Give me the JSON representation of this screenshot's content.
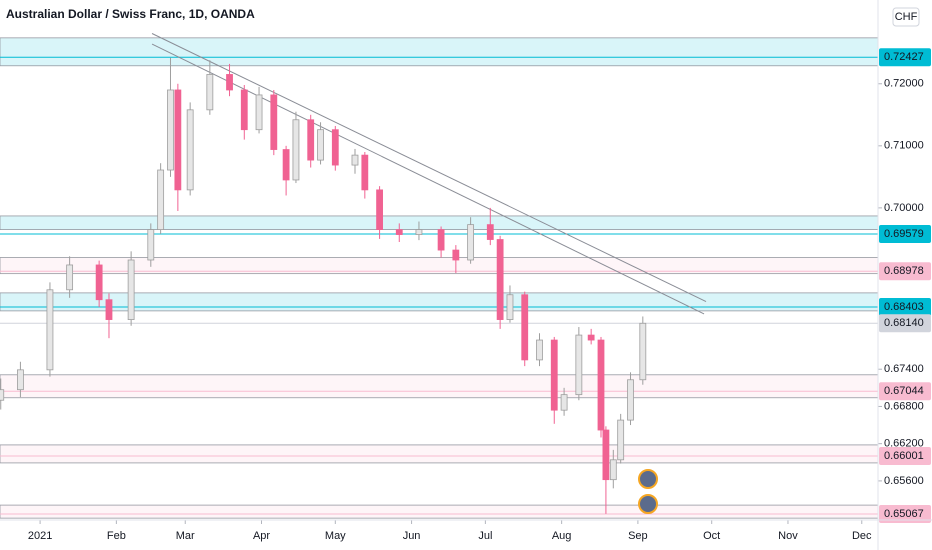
{
  "chart_data": {
    "type": "candlestick",
    "title": "Australian Dollar / Swiss Franc, 1D, OANDA",
    "currency": "CHF",
    "up_color": "#e6e6e6",
    "down_color": "#f06292",
    "xlim": [
      -16.3,
      340.6
    ],
    "ylim": [
      0.6497,
      0.7335
    ],
    "xticks": [
      {
        "value": 0,
        "label": "2021"
      },
      {
        "value": 31,
        "label": "Feb"
      },
      {
        "value": 59,
        "label": "Mar"
      },
      {
        "value": 90,
        "label": "Apr"
      },
      {
        "value": 120,
        "label": "May"
      },
      {
        "value": 151,
        "label": "Jun"
      },
      {
        "value": 181,
        "label": "Jul"
      },
      {
        "value": 212,
        "label": "Aug"
      },
      {
        "value": 243,
        "label": "Sep"
      },
      {
        "value": 273,
        "label": "Oct"
      },
      {
        "value": 304,
        "label": "Nov"
      },
      {
        "value": 334,
        "label": "Dec"
      }
    ],
    "yticks": [
      {
        "value": 0.72,
        "label": "0.72000"
      },
      {
        "value": 0.71,
        "label": "0.71000"
      },
      {
        "value": 0.7,
        "label": "0.70000"
      },
      {
        "value": 0.674,
        "label": "0.67400"
      },
      {
        "value": 0.668,
        "label": "0.66800"
      },
      {
        "value": 0.662,
        "label": "0.66200"
      },
      {
        "value": 0.656,
        "label": "0.65600"
      }
    ],
    "x": [
      -16,
      -8,
      4,
      12,
      24,
      28,
      37,
      45,
      49,
      53,
      56,
      61,
      69,
      77,
      83,
      89,
      95,
      100,
      104,
      110,
      114,
      120,
      128,
      132,
      138,
      146,
      154,
      163,
      169,
      175,
      183,
      187,
      191,
      197,
      203,
      209,
      213,
      219,
      224,
      228,
      230,
      233,
      236,
      240,
      245
    ],
    "open": [
      0.669,
      0.6707,
      0.6739,
      0.6868,
      0.6908,
      0.6852,
      0.682,
      0.6916,
      0.6965,
      0.7061,
      0.719,
      0.7029,
      0.7158,
      0.7215,
      0.719,
      0.7126,
      0.7182,
      0.7094,
      0.7045,
      0.7142,
      0.7077,
      0.7126,
      0.7069,
      0.7085,
      0.7029,
      0.6965,
      0.6957,
      0.6965,
      0.6932,
      0.6916,
      0.6973,
      0.6949,
      0.682,
      0.686,
      0.6755,
      0.6787,
      0.6674,
      0.6699,
      0.6795,
      0.6787,
      0.6642,
      0.6562,
      0.6594,
      0.6658,
      0.6723
    ],
    "high": [
      0.6725,
      0.6752,
      0.688,
      0.6922,
      0.6915,
      0.6862,
      0.693,
      0.6975,
      0.7072,
      0.7242,
      0.72,
      0.717,
      0.7238,
      0.7232,
      0.7198,
      0.7195,
      0.719,
      0.71,
      0.7155,
      0.715,
      0.7138,
      0.7132,
      0.7095,
      0.709,
      0.7035,
      0.6975,
      0.6978,
      0.697,
      0.694,
      0.6985,
      0.7,
      0.6955,
      0.6875,
      0.6865,
      0.6798,
      0.6792,
      0.671,
      0.6808,
      0.6805,
      0.6792,
      0.6648,
      0.661,
      0.6668,
      0.6735,
      0.6825
    ],
    "low": [
      0.6675,
      0.6695,
      0.6728,
      0.6855,
      0.684,
      0.679,
      0.681,
      0.6905,
      0.6958,
      0.705,
      0.6995,
      0.702,
      0.715,
      0.718,
      0.711,
      0.712,
      0.7085,
      0.702,
      0.704,
      0.7065,
      0.707,
      0.706,
      0.7055,
      0.7015,
      0.695,
      0.6945,
      0.6948,
      0.692,
      0.6895,
      0.691,
      0.694,
      0.6805,
      0.6815,
      0.6745,
      0.6745,
      0.6652,
      0.6665,
      0.669,
      0.678,
      0.663,
      0.6507,
      0.6548,
      0.6588,
      0.665,
      0.6715
    ],
    "close": [
      0.6707,
      0.6739,
      0.6868,
      0.6908,
      0.6852,
      0.682,
      0.6916,
      0.6965,
      0.7061,
      0.719,
      0.7029,
      0.7158,
      0.7215,
      0.719,
      0.7126,
      0.7182,
      0.7094,
      0.7045,
      0.7142,
      0.7077,
      0.7126,
      0.7069,
      0.7085,
      0.7029,
      0.6965,
      0.6957,
      0.6965,
      0.6932,
      0.6916,
      0.6973,
      0.6949,
      0.682,
      0.686,
      0.6755,
      0.6787,
      0.6674,
      0.6699,
      0.6795,
      0.6787,
      0.6642,
      0.6562,
      0.6594,
      0.6658,
      0.6723,
      0.6814
    ],
    "levels": [
      {
        "value": 0.72427,
        "label": "0.72427",
        "color": "#00bcd4",
        "zone": [
          0.7274,
          0.7229
        ]
      },
      {
        "value": 0.69579,
        "label": "0.69579",
        "color": "#00bcd4",
        "zone": [
          0.6987,
          0.6965
        ]
      },
      {
        "value": 0.68978,
        "label": "0.68978",
        "color": "#f8bbd0",
        "zone": [
          0.692,
          0.6894
        ]
      },
      {
        "value": 0.68403,
        "label": "0.68403",
        "color": "#00bcd4",
        "zone": [
          0.6863,
          0.6834
        ]
      },
      {
        "value": 0.6814,
        "label": "0.68140",
        "color": "#d1d4dc"
      },
      {
        "value": 0.67044,
        "label": "0.67044",
        "color": "#f8bbd0",
        "zone": [
          0.6731,
          0.6694
        ]
      },
      {
        "value": 0.66001,
        "label": "0.66001",
        "color": "#f8bbd0",
        "zone": [
          0.6618,
          0.6589
        ]
      },
      {
        "value": 0.65067,
        "label": "0.65067",
        "color": "#f8bbd0",
        "zone": [
          0.6521,
          0.65
        ]
      }
    ],
    "trendlines": [
      {
        "x": [
          45.5,
          270.7
        ],
        "y": [
          0.7281,
          0.6849
        ]
      },
      {
        "x": [
          45.5,
          269.9
        ],
        "y": [
          0.7264,
          0.6829
        ]
      }
    ]
  }
}
